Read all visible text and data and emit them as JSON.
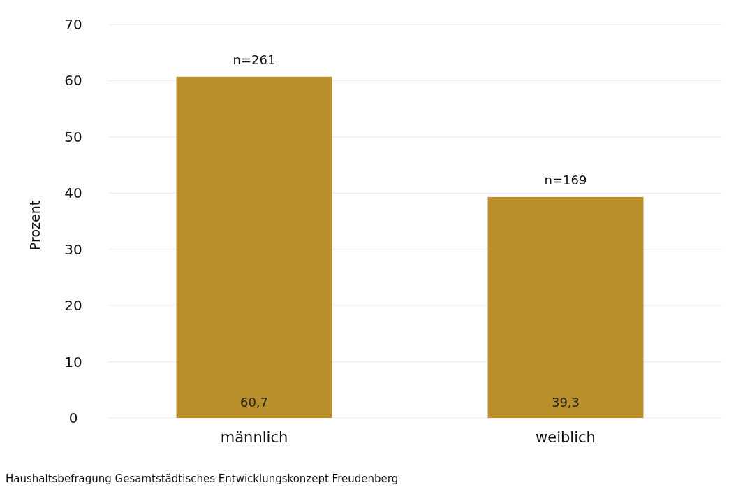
{
  "chart_data": {
    "type": "bar",
    "ylabel": "Prozent",
    "categories": [
      "männlich",
      "weiblich"
    ],
    "values": [
      60.7,
      39.3
    ],
    "color": "#b98f2c",
    "value_labels": [
      "60,7",
      "39,3"
    ],
    "ylim": [
      0,
      70
    ],
    "yticks": [
      0,
      10,
      20,
      30,
      40,
      50,
      60,
      70
    ],
    "grid": "y",
    "annotations": [
      {
        "text": "n=261",
        "x": "männlich",
        "y": 60.7
      },
      {
        "text": "n=169",
        "x": "weiblich",
        "y": 39.3
      },
      "Haushaltsbefragung Gesamtstädtisches Entwicklungskonzept Freudenberg"
    ]
  }
}
